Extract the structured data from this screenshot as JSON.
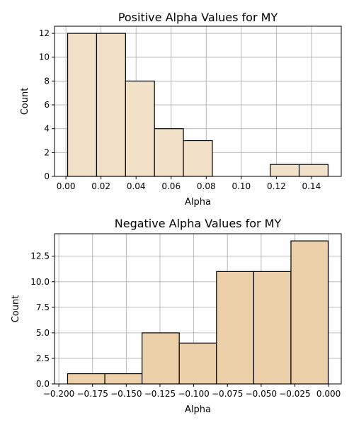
{
  "chart_data": [
    {
      "type": "bar",
      "title": "Positive Alpha Values for MY",
      "xlabel": "Alpha",
      "ylabel": "Count",
      "bin_edges": [
        0.001,
        0.0175,
        0.034,
        0.0505,
        0.067,
        0.0835,
        0.1,
        0.1165,
        0.133,
        0.1495
      ],
      "values": [
        12,
        12,
        8,
        4,
        3,
        0,
        0,
        1,
        1
      ],
      "xlim": [
        -0.0065,
        0.157
      ],
      "ylim": [
        0,
        12.6
      ],
      "xticks": [
        0.0,
        0.02,
        0.04,
        0.06,
        0.08,
        0.1,
        0.12,
        0.14
      ],
      "xtick_labels": [
        "0.00",
        "0.02",
        "0.04",
        "0.06",
        "0.08",
        "0.10",
        "0.12",
        "0.14"
      ],
      "yticks": [
        0,
        2,
        4,
        6,
        8,
        10,
        12
      ],
      "ytick_labels": [
        "0",
        "2",
        "4",
        "6",
        "8",
        "10",
        "12"
      ],
      "grid": true,
      "bar_color": "#f2e1c9"
    },
    {
      "type": "bar",
      "title": "Negative Alpha Values for MY",
      "xlabel": "Alpha",
      "ylabel": "Count",
      "bin_edges": [
        -0.1935,
        -0.1659,
        -0.1383,
        -0.1107,
        -0.0831,
        -0.0555,
        -0.0279,
        -0.0003
      ],
      "values": [
        1,
        1,
        5,
        4,
        11,
        11,
        14
      ],
      "xlim": [
        -0.2032,
        0.0094
      ],
      "ylim": [
        0,
        14.7
      ],
      "xticks": [
        -0.2,
        -0.175,
        -0.15,
        -0.125,
        -0.1,
        -0.075,
        -0.05,
        -0.025,
        0.0
      ],
      "xtick_labels": [
        "−0.200",
        "−0.175",
        "−0.150",
        "−0.125",
        "−0.100",
        "−0.075",
        "−0.050",
        "−0.025",
        "0.000"
      ],
      "yticks": [
        0,
        2.5,
        5,
        7.5,
        10,
        12.5
      ],
      "ytick_labels": [
        "0.0",
        "2.5",
        "5.0",
        "7.5",
        "10.0",
        "12.5"
      ],
      "grid": true,
      "bar_color": "#ecd0a9"
    }
  ]
}
